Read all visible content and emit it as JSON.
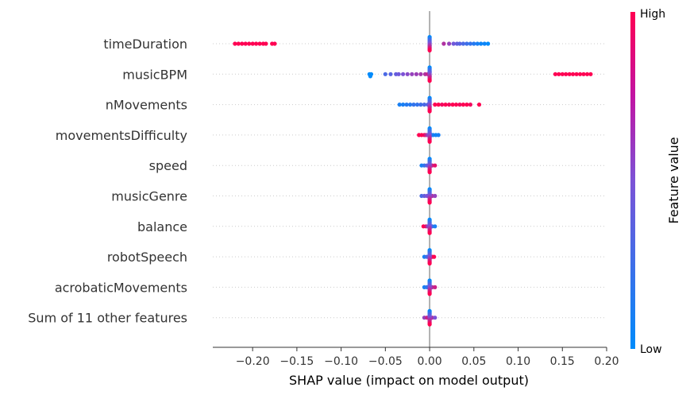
{
  "chart_data": {
    "type": "scatter",
    "subtype": "shap-beeswarm",
    "xlabel": "SHAP value (impact on model output)",
    "xlim": [
      -0.245,
      0.2
    ],
    "xticks": [
      -0.2,
      -0.15,
      -0.1,
      -0.05,
      0.0,
      0.05,
      0.1,
      0.15,
      0.2
    ],
    "xtick_labels": [
      "−0.20",
      "−0.15",
      "−0.10",
      "−0.05",
      "0.00",
      "0.05",
      "0.10",
      "0.15",
      "0.20"
    ],
    "features": [
      {
        "name": "timeDuration",
        "points": [
          [
            -0.22,
            1
          ],
          [
            -0.216,
            1
          ],
          [
            -0.212,
            1
          ],
          [
            -0.208,
            1
          ],
          [
            -0.204,
            1
          ],
          [
            -0.2,
            1
          ],
          [
            -0.196,
            1
          ],
          [
            -0.192,
            1
          ],
          [
            -0.188,
            1
          ],
          [
            -0.185,
            1
          ],
          [
            -0.178,
            1
          ],
          [
            -0.175,
            1
          ],
          [
            0.0,
            0
          ],
          [
            0.0,
            0
          ],
          [
            0.016,
            0.7
          ],
          [
            0.022,
            0.6
          ],
          [
            0.027,
            0.45
          ],
          [
            0.031,
            0.4
          ],
          [
            0.034,
            0.35
          ],
          [
            0.038,
            0.3
          ],
          [
            0.042,
            0.25
          ],
          [
            0.046,
            0.2
          ],
          [
            0.05,
            0.15
          ],
          [
            0.054,
            0.1
          ],
          [
            0.058,
            0.05
          ],
          [
            0.062,
            0.05
          ],
          [
            0.066,
            0.0
          ]
        ]
      },
      {
        "name": "musicBPM",
        "points": [
          [
            -0.068,
            0
          ],
          [
            -0.067,
            0
          ],
          [
            -0.066,
            0
          ],
          [
            -0.05,
            0.3
          ],
          [
            -0.044,
            0.35
          ],
          [
            -0.038,
            0.4
          ],
          [
            -0.035,
            0.45
          ],
          [
            -0.03,
            0.5
          ],
          [
            -0.025,
            0.55
          ],
          [
            -0.02,
            0.6
          ],
          [
            -0.015,
            0.62
          ],
          [
            -0.01,
            0.65
          ],
          [
            -0.005,
            0.7
          ],
          [
            -0.002,
            0.8
          ],
          [
            0.0,
            0.9
          ],
          [
            0.0,
            0.5
          ],
          [
            0.142,
            1
          ],
          [
            0.146,
            1
          ],
          [
            0.15,
            1
          ],
          [
            0.154,
            1
          ],
          [
            0.158,
            1
          ],
          [
            0.162,
            1
          ],
          [
            0.166,
            1
          ],
          [
            0.17,
            1
          ],
          [
            0.174,
            1
          ],
          [
            0.178,
            1
          ],
          [
            0.182,
            1
          ]
        ]
      },
      {
        "name": "nMovements",
        "points": [
          [
            -0.034,
            0.1
          ],
          [
            -0.03,
            0.1
          ],
          [
            -0.026,
            0.15
          ],
          [
            -0.022,
            0.15
          ],
          [
            -0.018,
            0.2
          ],
          [
            -0.014,
            0.2
          ],
          [
            -0.01,
            0.25
          ],
          [
            -0.006,
            0.3
          ],
          [
            -0.002,
            0.35
          ],
          [
            0.0,
            0.5
          ],
          [
            0.0,
            0.6
          ],
          [
            0.006,
            1
          ],
          [
            0.01,
            1
          ],
          [
            0.014,
            0.95
          ],
          [
            0.018,
            1
          ],
          [
            0.022,
            0.95
          ],
          [
            0.026,
            1
          ],
          [
            0.03,
            1
          ],
          [
            0.034,
            0.95
          ],
          [
            0.038,
            1
          ],
          [
            0.042,
            1
          ],
          [
            0.046,
            0.95
          ],
          [
            0.056,
            1
          ]
        ]
      },
      {
        "name": "movementsDifficulty",
        "points": [
          [
            -0.012,
            1
          ],
          [
            -0.009,
            1
          ],
          [
            -0.006,
            0.95
          ],
          [
            -0.004,
            0.8
          ],
          [
            -0.002,
            0.6
          ],
          [
            0.0,
            0.5
          ],
          [
            0.0,
            0.3
          ],
          [
            0.002,
            0.2
          ],
          [
            0.004,
            0.1
          ],
          [
            0.007,
            0.05
          ],
          [
            0.01,
            0.1
          ]
        ]
      },
      {
        "name": "speed",
        "points": [
          [
            -0.009,
            0.1
          ],
          [
            -0.006,
            0.2
          ],
          [
            -0.003,
            0.4
          ],
          [
            0.0,
            0.5
          ],
          [
            0.0,
            0.9
          ],
          [
            0.003,
            0.8
          ],
          [
            0.006,
            0.9
          ]
        ]
      },
      {
        "name": "musicGenre",
        "points": [
          [
            -0.009,
            0.3
          ],
          [
            -0.006,
            0.4
          ],
          [
            -0.003,
            0.5
          ],
          [
            0.0,
            0.6
          ],
          [
            0.0,
            0.8
          ],
          [
            0.003,
            0.7
          ],
          [
            0.006,
            0.6
          ]
        ]
      },
      {
        "name": "balance",
        "points": [
          [
            -0.007,
            1
          ],
          [
            -0.004,
            0.9
          ],
          [
            -0.002,
            0.6
          ],
          [
            0.0,
            0.5
          ],
          [
            0.0,
            0.9
          ],
          [
            0.003,
            0.3
          ],
          [
            0.006,
            0.1
          ]
        ]
      },
      {
        "name": "robotSpeech",
        "points": [
          [
            -0.006,
            0.1
          ],
          [
            -0.003,
            0.3
          ],
          [
            0.0,
            0.5
          ],
          [
            0.0,
            0.9
          ],
          [
            0.003,
            0.9
          ],
          [
            0.005,
            1
          ]
        ]
      },
      {
        "name": "acrobaticMovements",
        "points": [
          [
            -0.006,
            0.1
          ],
          [
            -0.003,
            0.2
          ],
          [
            0.0,
            0.5
          ],
          [
            0.0,
            0.1
          ],
          [
            0.003,
            0.7
          ],
          [
            0.006,
            0.8
          ]
        ]
      },
      {
        "name": "Sum of 11 other features",
        "points": [
          [
            -0.006,
            0.6
          ],
          [
            -0.003,
            0.8
          ],
          [
            0.0,
            1
          ],
          [
            0.0,
            0.9
          ],
          [
            0.003,
            0.7
          ],
          [
            0.006,
            0.5
          ]
        ]
      }
    ],
    "colorbar": {
      "label": "Feature value",
      "high_label": "High",
      "low_label": "Low",
      "high_color": "#ff0052",
      "low_color": "#008bfb"
    },
    "zero_line": true,
    "grid": false
  }
}
